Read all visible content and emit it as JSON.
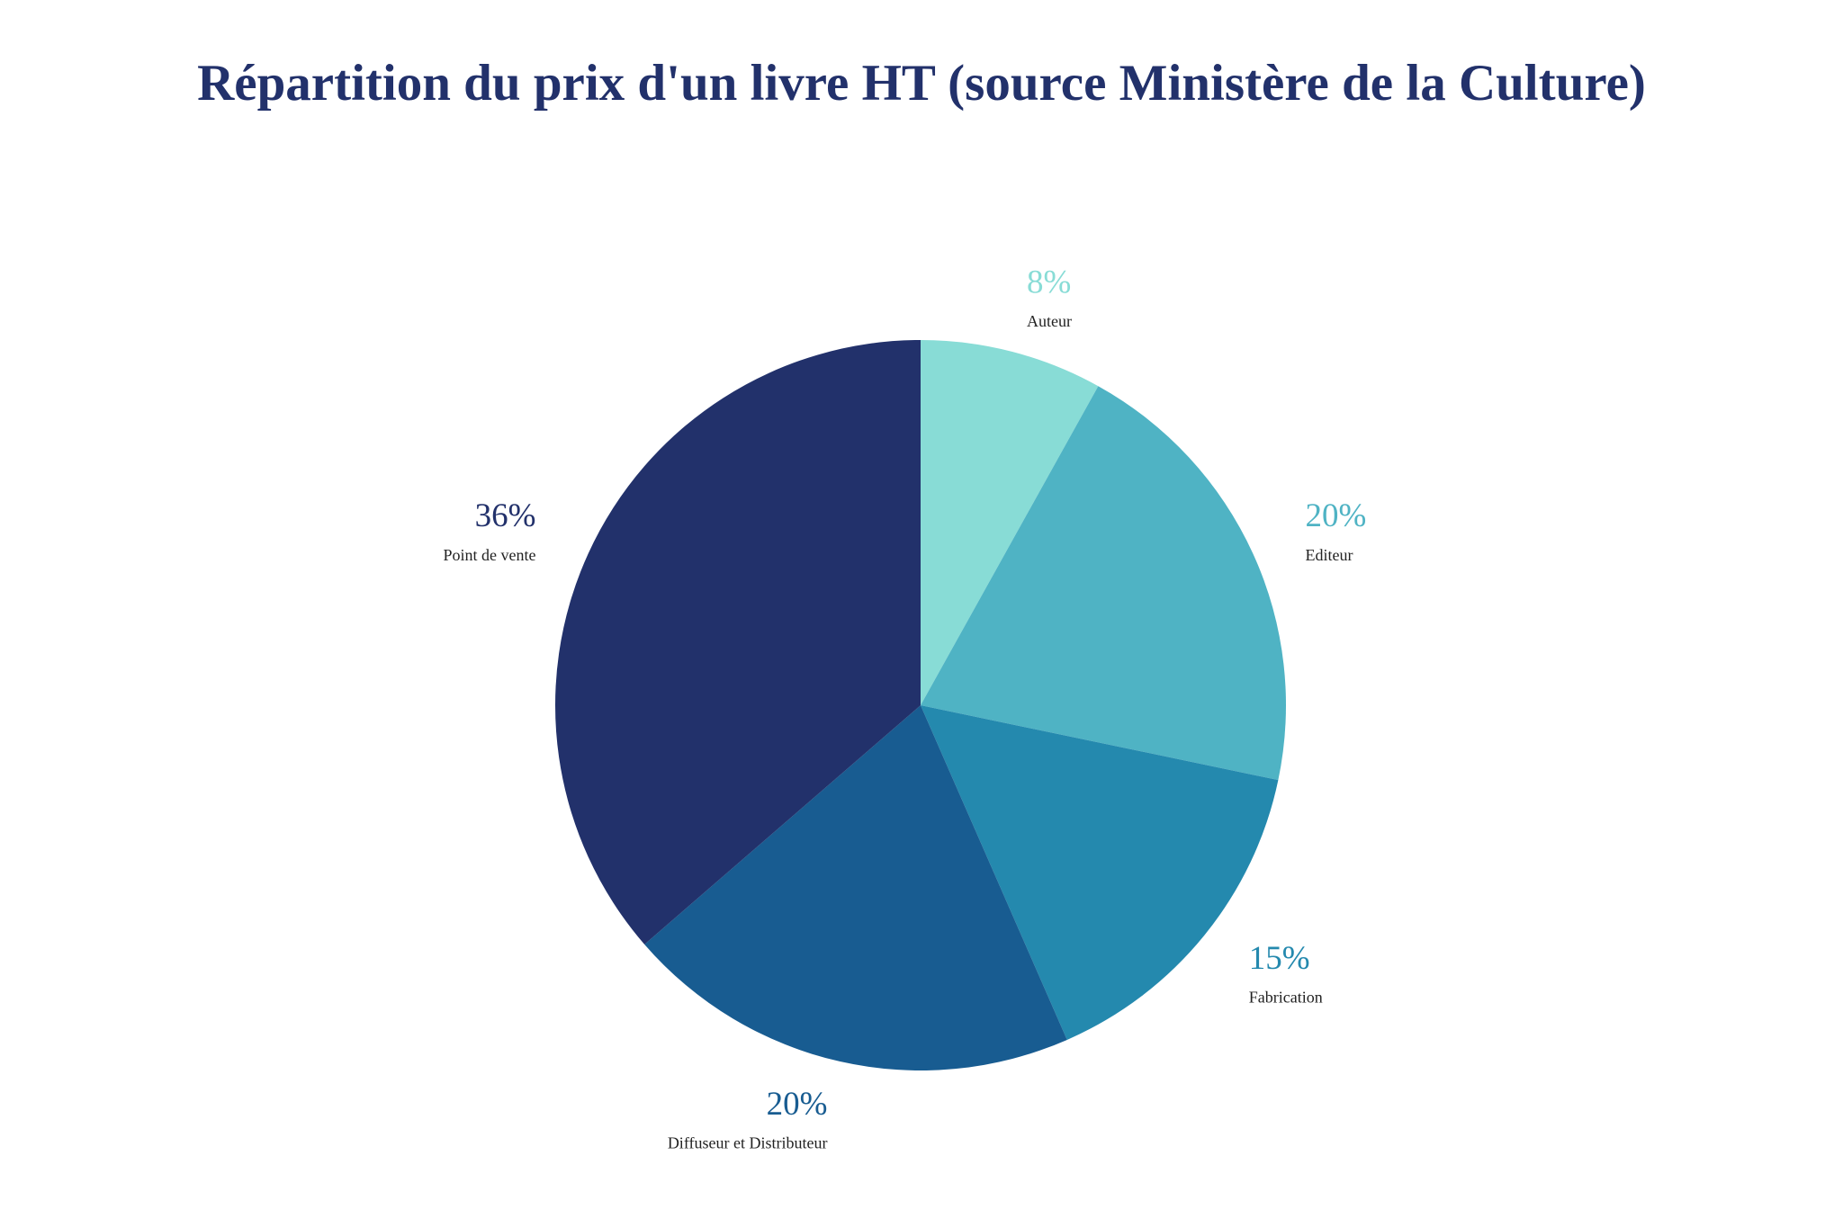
{
  "chart_data": {
    "type": "pie",
    "title": "Répartition du prix d'un livre HT (source Ministère de la Culture)",
    "categories": [
      "Auteur",
      "Editeur",
      "Fabrication",
      "Diffuseur et Distributeur",
      "Point de vente"
    ],
    "values": [
      8,
      20,
      15,
      20,
      36
    ],
    "value_labels": [
      "8%",
      "20%",
      "15%",
      "20%",
      "36%"
    ],
    "colors": [
      "#88dcd6",
      "#4fb3c4",
      "#2489ae",
      "#185c91",
      "#22316b"
    ]
  }
}
